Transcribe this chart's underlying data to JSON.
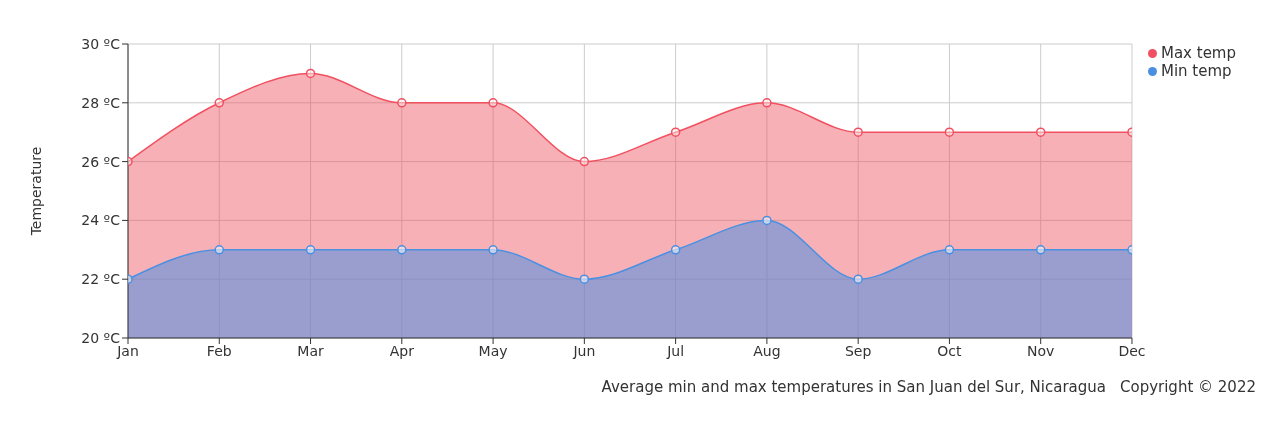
{
  "chart_data": {
    "type": "area",
    "ylabel": "Temperature",
    "categories": [
      "Jan",
      "Feb",
      "Mar",
      "Apr",
      "May",
      "Jun",
      "Jul",
      "Aug",
      "Sep",
      "Oct",
      "Nov",
      "Dec"
    ],
    "series": [
      {
        "name": "Max temp",
        "color": "#f0505f",
        "values": [
          26,
          28,
          29,
          28,
          28,
          26,
          27,
          28,
          27,
          27,
          27,
          27
        ]
      },
      {
        "name": "Min temp",
        "color": "#4a90e2",
        "values": [
          22,
          23,
          23,
          23,
          23,
          22,
          23,
          24,
          22,
          23,
          23,
          23
        ]
      }
    ],
    "ylim": [
      20,
      30
    ],
    "yticks": [
      {
        "value": 20,
        "label": "20 ºC"
      },
      {
        "value": 22,
        "label": "22 ºC"
      },
      {
        "value": 24,
        "label": "24 ºC"
      },
      {
        "value": 26,
        "label": "26 ºC"
      },
      {
        "value": 28,
        "label": "28 ºC"
      },
      {
        "value": 30,
        "label": "30 ºC"
      }
    ],
    "grid": true,
    "legend": "top right",
    "marker": "circle",
    "line_style": "solid",
    "annotations": [
      "Average min and max temperatures in San Juan del Sur, Nicaragua",
      "Copyright © 2022"
    ]
  }
}
